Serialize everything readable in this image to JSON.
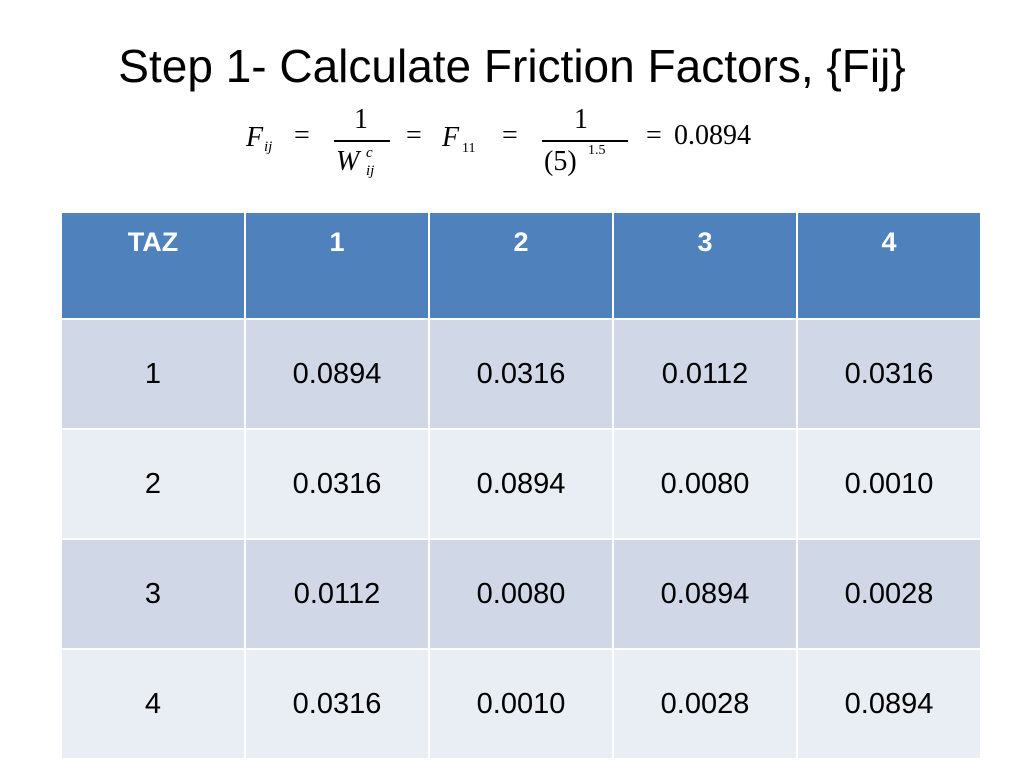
{
  "slide": {
    "title": "Step 1- Calculate Friction Factors, {Fij}"
  },
  "formula": {
    "F": "F",
    "ij": "ij",
    "eq": "=",
    "one": "1",
    "W": "W",
    "c": "c",
    "F11_sub": "11",
    "base": "(5)",
    "exponent": "1.5",
    "result": "0.0894"
  },
  "table": {
    "headers": [
      "TAZ",
      "1",
      "2",
      "3",
      "4"
    ],
    "rows": [
      [
        "1",
        "0.0894",
        "0.0316",
        "0.0112",
        "0.0316"
      ],
      [
        "2",
        "0.0316",
        "0.0894",
        "0.0080",
        "0.0010"
      ],
      [
        "3",
        "0.0112",
        "0.0080",
        "0.0894",
        "0.0028"
      ],
      [
        "4",
        "0.0316",
        "0.0010",
        "0.0028",
        "0.0894"
      ]
    ]
  }
}
